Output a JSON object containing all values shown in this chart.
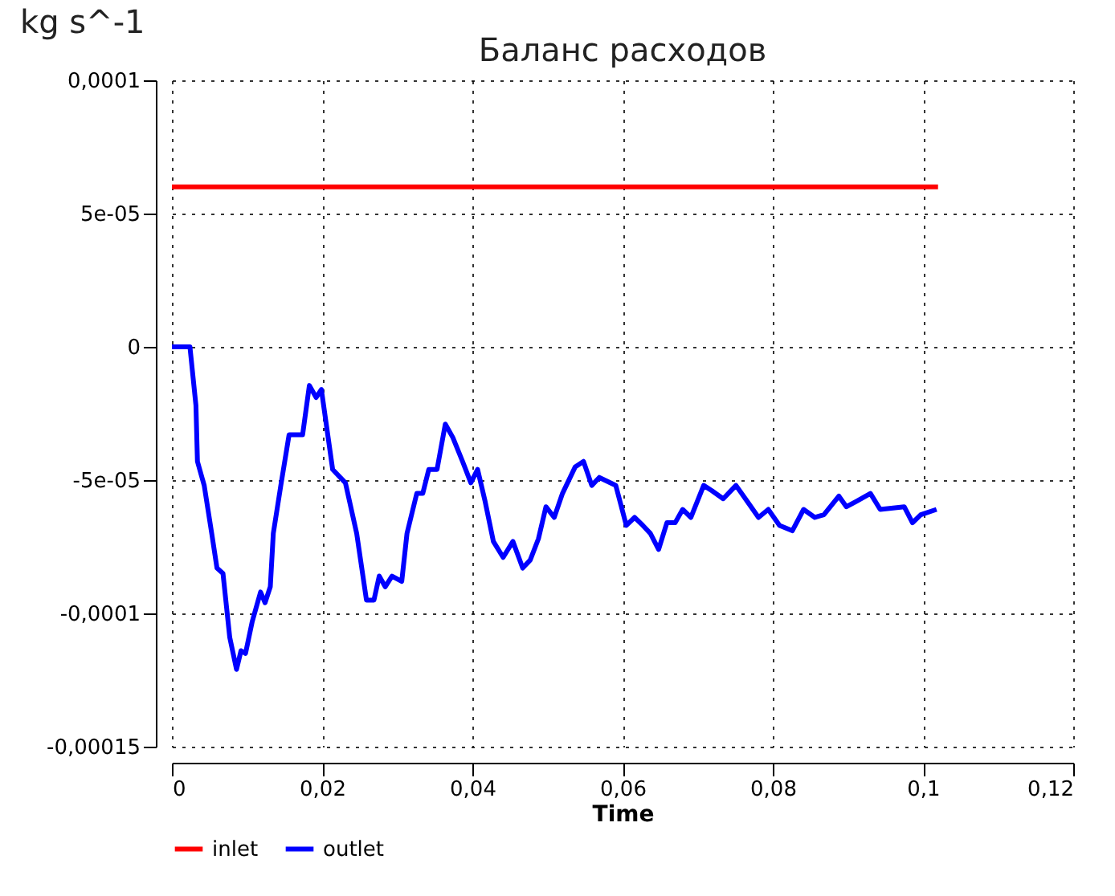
{
  "chart_data": {
    "type": "line",
    "title": "Баланс расходов",
    "xlabel": "Time",
    "ylabel": "kg s^-1",
    "xlim": [
      0,
      0.12
    ],
    "ylim": [
      -0.00015,
      0.0001
    ],
    "xticks": [
      0,
      {
        "value": 0.02,
        "label": "0,02"
      },
      {
        "value": 0.04,
        "label": "0,04"
      },
      {
        "value": 0.06,
        "label": "0,06"
      },
      {
        "value": 0.08,
        "label": "0,08"
      },
      {
        "value": 0.1,
        "label": "0,1"
      },
      {
        "value": 0.12,
        "label": "0,12"
      }
    ],
    "yticks": [
      {
        "value": -0.00015,
        "label": "-0,00015"
      },
      {
        "value": -0.0001,
        "label": "-0,0001"
      },
      {
        "value": -5e-05,
        "label": "-5e-05"
      },
      0,
      {
        "value": 5e-05,
        "label": "5e-05"
      },
      {
        "value": 0.0001,
        "label": "0,0001"
      }
    ],
    "grid": true,
    "legend": "bottom",
    "marker": "none",
    "line_style": "solid",
    "series": [
      {
        "name": "inlet",
        "color": "#ff0000",
        "x": [
          0,
          0.102
        ],
        "values": [
          6e-05,
          6e-05
        ]
      },
      {
        "name": "outlet",
        "color": "#0000ff",
        "x": [
          0,
          0.0024,
          0.0032,
          0.0034,
          0.0043,
          0.0053,
          0.006,
          0.0068,
          0.0077,
          0.0086,
          0.0092,
          0.0098,
          0.0107,
          0.0118,
          0.0124,
          0.0131,
          0.0135,
          0.0145,
          0.0156,
          0.0174,
          0.0183,
          0.0192,
          0.0199,
          0.0214,
          0.0231,
          0.0246,
          0.0259,
          0.0269,
          0.0276,
          0.0284,
          0.0293,
          0.0306,
          0.0313,
          0.0326,
          0.0334,
          0.0342,
          0.0353,
          0.0364,
          0.0374,
          0.0387,
          0.0398,
          0.0407,
          0.0417,
          0.0428,
          0.0441,
          0.0454,
          0.0467,
          0.0477,
          0.0488,
          0.0498,
          0.0509,
          0.052,
          0.0537,
          0.0548,
          0.0559,
          0.0569,
          0.0591,
          0.0605,
          0.0616,
          0.0627,
          0.0637,
          0.0648,
          0.0659,
          0.067,
          0.068,
          0.0691,
          0.0708,
          0.0719,
          0.0734,
          0.0751,
          0.0766,
          0.0781,
          0.0794,
          0.0809,
          0.0826,
          0.0841,
          0.0856,
          0.0868,
          0.0888,
          0.0898,
          0.0911,
          0.093,
          0.0943,
          0.0975,
          0.0986,
          0.0997,
          0.1018
        ],
        "values": [
          0,
          0,
          -2.2e-05,
          -4.3e-05,
          -5.2e-05,
          -7e-05,
          -8.3e-05,
          -8.5e-05,
          -0.000109,
          -0.000121,
          -0.000114,
          -0.000115,
          -0.000103,
          -9.2e-05,
          -9.6e-05,
          -9e-05,
          -7e-05,
          -5.2e-05,
          -3.3e-05,
          -3.3e-05,
          -1.45e-05,
          -1.9e-05,
          -1.6e-05,
          -4.6e-05,
          -5.1e-05,
          -7e-05,
          -9.5e-05,
          -9.5e-05,
          -8.6e-05,
          -9e-05,
          -8.6e-05,
          -8.8e-05,
          -7e-05,
          -5.5e-05,
          -5.5e-05,
          -4.6e-05,
          -4.6e-05,
          -2.9e-05,
          -3.4e-05,
          -4.3e-05,
          -5.1e-05,
          -4.6e-05,
          -5.8e-05,
          -7.3e-05,
          -7.9e-05,
          -7.3e-05,
          -8.3e-05,
          -8e-05,
          -7.2e-05,
          -6e-05,
          -6.4e-05,
          -5.5e-05,
          -4.5e-05,
          -4.3e-05,
          -5.2e-05,
          -4.9e-05,
          -5.2e-05,
          -6.7e-05,
          -6.4e-05,
          -6.7e-05,
          -7e-05,
          -7.6e-05,
          -6.6e-05,
          -6.6e-05,
          -6.1e-05,
          -6.4e-05,
          -5.2e-05,
          -5.4e-05,
          -5.7e-05,
          -5.2e-05,
          -5.8e-05,
          -6.4e-05,
          -6.1e-05,
          -6.7e-05,
          -6.9e-05,
          -6.1e-05,
          -6.4e-05,
          -6.3e-05,
          -5.6e-05,
          -6e-05,
          -5.8e-05,
          -5.5e-05,
          -6.1e-05,
          -6e-05,
          -6.6e-05,
          -6.3e-05,
          -6.1e-05
        ]
      }
    ]
  }
}
